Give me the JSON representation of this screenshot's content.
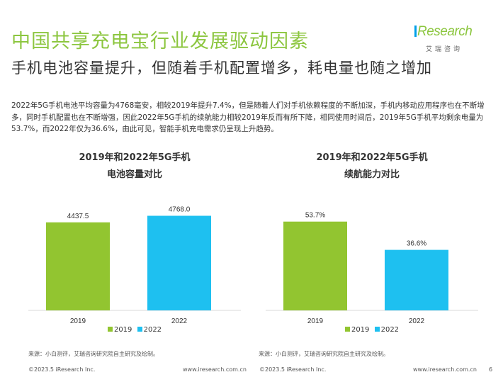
{
  "header": {
    "title": "中国共享充电宝行业发展驱动因素",
    "logo_text": "Research",
    "logo_sub": "艾瑞咨询"
  },
  "subtitle": "手机电池容量提升，但随着手机配置增多，耗电量也随之增加",
  "body_text": "2022年5G手机电池平均容量为4768毫安，相较2019年提升7.4%，但是随着人们对手机依赖程度的不断加深，手机内移动应用程序也在不断增多，同时手机配置也在不断增强，因此2022年5G手机的续航能力相较2019年反而有所下降，相同使用时间后，2019年5G手机平均剩余电量为53.7%，而2022年仅为36.6%，由此可见，智能手机充电需求仍呈现上升趋势。",
  "colors": {
    "green": "#92c530",
    "blue": "#1ec0f0",
    "title_green": "#8cc63f"
  },
  "chart_data": [
    {
      "type": "bar",
      "title_line1": "2019年和2022年5G手机",
      "title_line2": "电池容量对比",
      "categories": [
        "2019",
        "2022"
      ],
      "values": [
        4437.5,
        4768.0
      ],
      "labels": [
        "4437.5",
        "4768.0"
      ],
      "ylim": [
        0,
        6000
      ],
      "legend": [
        "2019",
        "2022"
      ],
      "legend_position": "bottom",
      "grid": false
    },
    {
      "type": "bar",
      "title_line1": "2019年和2022年5G手机",
      "title_line2": "续航能力对比",
      "categories": [
        "2019",
        "2022"
      ],
      "values": [
        53.7,
        36.6
      ],
      "labels": [
        "53.7%",
        "36.6%"
      ],
      "ylim": [
        0,
        72
      ],
      "legend": [
        "2019",
        "2022"
      ],
      "legend_position": "bottom",
      "grid": false
    }
  ],
  "source_left": "来源：小白测评，艾瑞咨询研究院自主研究及绘制。",
  "source_right": "来源：小白测评，艾瑞咨询研究院自主研究及绘制。",
  "footer": {
    "copyright_left": "©2023.5 iResearch Inc.",
    "url_left": "www.iresearch.com.cn",
    "copyright_right": "©2023.5 iResearch Inc.",
    "url_right": "www.iresearch.com.cn",
    "page_number": "6"
  }
}
